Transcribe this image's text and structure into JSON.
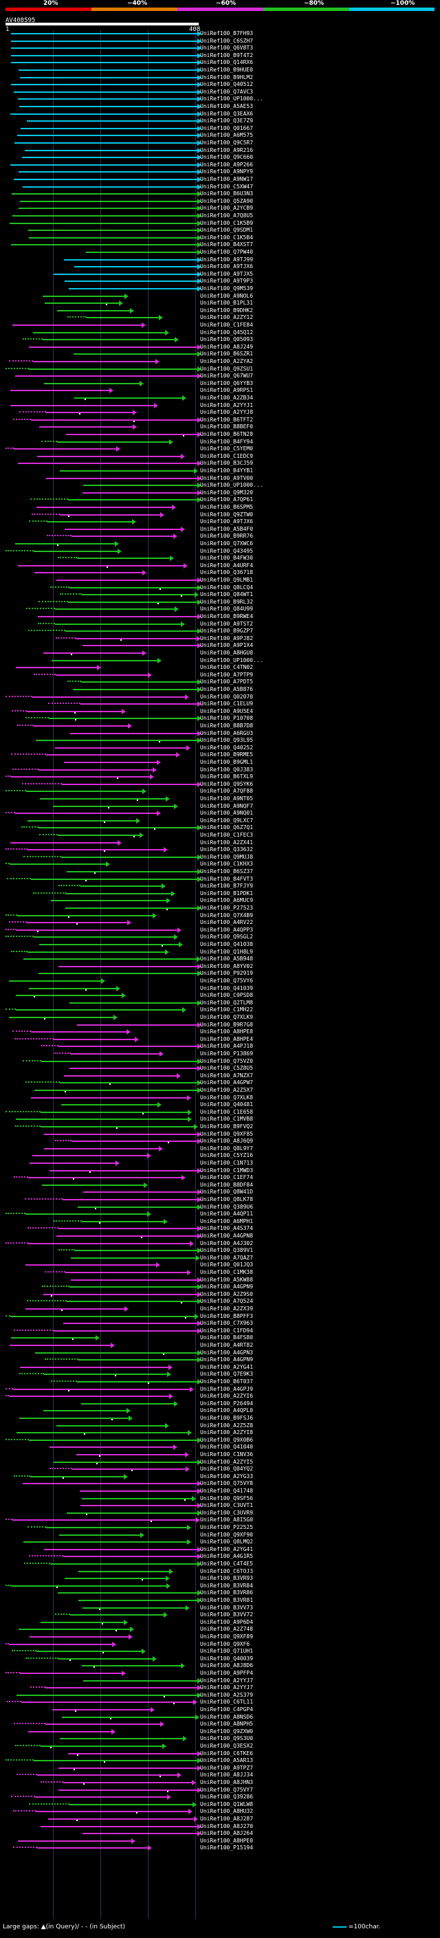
{
  "color_scale": {
    "labels": [
      "20%",
      "~40%",
      "~60%",
      "~80%",
      "~100%"
    ],
    "colors": [
      "#e00000",
      "#e07800",
      "#d82cd8",
      "#20c020",
      "#00c8e6"
    ]
  },
  "query": {
    "id": "AV408595",
    "start": "1",
    "end": "408"
  },
  "hits": [
    "UniRef100_B7FH93",
    "UniRef100_C6SZH7",
    "UniRef100_Q6V8T3",
    "UniRef100_B9T4T2",
    "UniRef100_Q14RX6",
    "UniRef100_B9HUE0",
    "UniRef100_B9HLM2",
    "UniRef100_Q40512",
    "UniRef100_Q7AVC3",
    "UniRef100_UP1000...",
    "UniRef100_A5AE53",
    "UniRef100_Q3EAX6",
    "UniRef100_Q3E7Z9",
    "UniRef100_Q01667",
    "UniRef100_A6M575",
    "UniRef100_Q9C5R7",
    "UniRef100_A9R216",
    "UniRef100_Q9C660",
    "UniRef100_A9P266",
    "UniRef100_A9NPY9",
    "UniRef100_A9NW17",
    "UniRef100_C5XW47",
    "UniRef100_B6U3N3",
    "UniRef100_Q5ZA90",
    "UniRef100_A2YCB9",
    "UniRef100_A7Q8U5",
    "UniRef100_C1K5B9",
    "UniRef100_Q9SDM1",
    "UniRef100_C1K5B4",
    "UniRef100_B4XST7",
    "UniRef100_Q7PW40",
    "UniRef100_A9TJ99",
    "UniRef100_A9TJX6",
    "UniRef100_A9TJX5",
    "UniRef100_A9T9P3",
    "UniRef100_Q9M539",
    "UniRef100_A9NOL6",
    "UniRef100_B1PL31",
    "UniRef100_B9DHK2",
    "UniRef100_A2ZY12",
    "UniRef100_C1FE84",
    "UniRef100_Q45Q12",
    "UniRef100_Q05093",
    "UniRef100_A8J249",
    "UniRef100_B6SZR1",
    "UniRef100_A2ZYA2",
    "UniRef100_Q9ZSU1",
    "UniRef100_Q67WU7",
    "UniRef100_Q6YYB3",
    "UniRef100_A9RPS1",
    "UniRef100_A2ZB34",
    "UniRef100_A2YYJ1",
    "UniRef100_A2YYJ8",
    "UniRef100_B6TFT2",
    "UniRef100_B8BEF0",
    "UniRef100_B6TN28",
    "UniRef100_B4FY94",
    "UniRef100_C5YEM0",
    "UniRef100_C1EDC9",
    "UniRef100_B3CJ59",
    "UniRef100_B4YYB1",
    "UniRef100_A9TV00",
    "UniRef100_UP1000...",
    "UniRef100_Q9M320",
    "UniRef100_A7QP61",
    "UniRef100_B6SPM5",
    "UniRef100_Q9ZTW0",
    "UniRef100_A9TJX6",
    "UniRef100_A5B4F0",
    "UniRef100_B9RR76",
    "UniRef100_Q7XWC6",
    "UniRef100_Q43495",
    "UniRef100_B4FW30",
    "UniRef100_A4URF4",
    "UniRef100_Q36718",
    "UniRef100_Q9LMB1",
    "UniRef100_Q8LCQ4",
    "UniRef100_Q84WT1",
    "UniRef100_B9RL32",
    "UniRef100_Q84U99",
    "UniRef100_B9RWE4",
    "UniRef100_A9TST2",
    "UniRef100_B9GZP7",
    "UniRef100_A9PJ82",
    "UniRef100_A9P1X4",
    "UniRef100_A8HGU8",
    "UniRef100_UP1000...",
    "UniRef100_C4TN02",
    "UniRef100_A7PTP9",
    "UniRef100_A7PDT5",
    "UniRef100_A5B876",
    "UniRef100_Q02070",
    "UniRef100_C1ELU9",
    "UniRef100_A9U5E4",
    "UniRef100_P10708",
    "UniRef100_B8B7D8",
    "UniRef100_A6RGU3",
    "UniRef100_Q93L95",
    "UniRef100_Q40252",
    "UniRef100_B9RME5",
    "UniRef100_B9GML1",
    "UniRef100_Q0J383",
    "UniRef100_B6TXL9",
    "UniRef100_Q9SYK6",
    "UniRef100_A7QF88",
    "UniRef100_A9NT05",
    "UniRef100_A9NQF7",
    "UniRef100_A9NQ01",
    "UniRef100_Q9LXC7",
    "UniRef100_Q6Z7Q1",
    "UniRef100_C1FEC3",
    "UniRef100_A2ZX41",
    "UniRef100_Q33632",
    "UniRef100_Q9MUJ8",
    "UniRef100_C1KHX3",
    "UniRef100_B6SZ37",
    "UniRef100_B4FVT3",
    "UniRef100_B7FJY9",
    "UniRef100_B1PDK1",
    "UniRef100_A6MUC9",
    "UniRef100_P27523",
    "UniRef100_Q7X4B9",
    "UniRef100_A4RV22",
    "UniRef100_A4QPP3",
    "UniRef100_Q9SGL2",
    "UniRef100_Q41038",
    "UniRef100_Q1H8L9",
    "UniRef100_A5B948",
    "UniRef100_A8YV02",
    "UniRef100_P92919",
    "UniRef100_Q75VY6",
    "UniRef100_Q41039",
    "UniRef100_C0PSD8",
    "UniRef100_Q2TLM8",
    "UniRef100_C1MH22",
    "UniRef100_Q7XLK9",
    "UniRef100_B9R7G8",
    "UniRef100_A8HPE8",
    "UniRef100_A8HPE4",
    "UniRef100_A4PJ18",
    "UniRef100_P13869",
    "UniRef100_Q75VZ0",
    "UniRef100_C5Z8U5",
    "UniRef100_A7NZX7",
    "UniRef100_A4GPW7",
    "UniRef100_A2Z5X7",
    "UniRef100_Q7XLK8",
    "UniRef100_Q40481",
    "UniRef100_C1E658",
    "UniRef100_C1MVB8",
    "UniRef100_B9FVQ2",
    "UniRef100_Q9XF85",
    "UniRef100_A8J6Q9",
    "UniRef100_Q8L9Y7",
    "UniRef100_C5YZ16",
    "UniRef100_C1N713",
    "UniRef100_C1MWD3",
    "UniRef100_C1EF74",
    "UniRef100_B8DF84",
    "UniRef100_Q8W41D",
    "UniRef100_Q8LK78",
    "UniRef100_Q389U6",
    "UniRef100_A4QP11",
    "UniRef100_A6MPH1",
    "UniRef100_A4S374",
    "UniRef100_A4GPN8",
    "UniRef100_A4J302",
    "UniRef100_Q389V1",
    "UniRef100_A7QAZ7",
    "UniRef100_Q01JQ3",
    "UniRef100_C1MK38",
    "UniRef100_A5KW88",
    "UniRef100_A4GPN9",
    "UniRef100_A2Z9S0",
    "UniRef100_A7Q524",
    "UniRef100_A2ZX39",
    "UniRef100_B8PFF3",
    "UniRef100_C7X963",
    "UniRef100_C1FD94",
    "UniRef100_B4FS80",
    "UniRef100_A4RT82",
    "UniRef100_A4GPN3",
    "UniRef100_A4GPN9",
    "UniRef100_A2YG41",
    "UniRef100_Q7E9K3",
    "UniRef100_B6T037",
    "UniRef100_A4GPJ9",
    "UniRef100_A2ZYI6",
    "UniRef100_P26494",
    "UniRef100_A4QPL0",
    "UniRef100_B9FSJ6",
    "UniRef100_A2Z5Z8",
    "UniRef100_A2ZYI8",
    "UniRef100_Q9X0B6",
    "UniRef100_Q41040",
    "UniRef100_C1NV36",
    "UniRef100_A2ZYI5",
    "UniRef100_Q84YQ2",
    "UniRef100_A2YG33",
    "UniRef100_Q75VY8",
    "UniRef100_Q41748",
    "UniRef100_Q9SF56",
    "UniRef100_C3UVT1",
    "UniRef100_C3UVR9",
    "UniRef100_A8I5G0",
    "UniRef100_P22525",
    "UniRef100_Q9XF90",
    "UniRef100_Q8LMQ2",
    "UniRef100_A2YG41",
    "UniRef100_A4G1R5",
    "UniRef100_C4T4E5",
    "UniRef100_C6TOJ3",
    "UniRef100_B3VR93",
    "UniRef100_B3VR84",
    "UniRef100_B3VR86",
    "UniRef100_B3VR81",
    "UniRef100_B3VV73",
    "UniRef100_B3VV72",
    "UniRef100_A9P6D4",
    "UniRef100_A2Z748",
    "UniRef100_Q9XF89",
    "UniRef100_Q9XF6",
    "UniRef100_Q71UH1",
    "UniRef100_Q40039",
    "UniRef100_A8J8D6",
    "UniRef100_A9PFP4",
    "UniRef100_A2YYJ7",
    "UniRef100_A2YYJ7",
    "UniRef100_A2S379",
    "UniRef100_C6TL11",
    "UniRef100_C4PGP4",
    "UniRef100_A8NSD6",
    "UniRef100_A8NPH5",
    "UniRef100_Q9ZXW0",
    "UniRef100_Q9S3U0",
    "UniRef100_Q3ESX2",
    "UniRef100_C6TKE6",
    "UniRef100_A5AR13",
    "UniRef100_A9TPZ7",
    "UniRef100_A8JJ34",
    "UniRef100_A8JHN3",
    "UniRef100_Q75VY7",
    "UniRef100_Q39286",
    "UniRef100_Q1WLW8",
    "UniRef100_A8HU32",
    "UniRef100_A8J287",
    "UniRef100_A8J270",
    "UniRef100_A8J264",
    "UniRef100_A8HPE0",
    "UniRef100_P15194"
  ],
  "legend": {
    "large_gaps": "Large gaps:",
    "in_query": "▲(in Query)/",
    "dash": "- -",
    "in_subject": "(in Subject)",
    "scale_text": "=100char."
  }
}
